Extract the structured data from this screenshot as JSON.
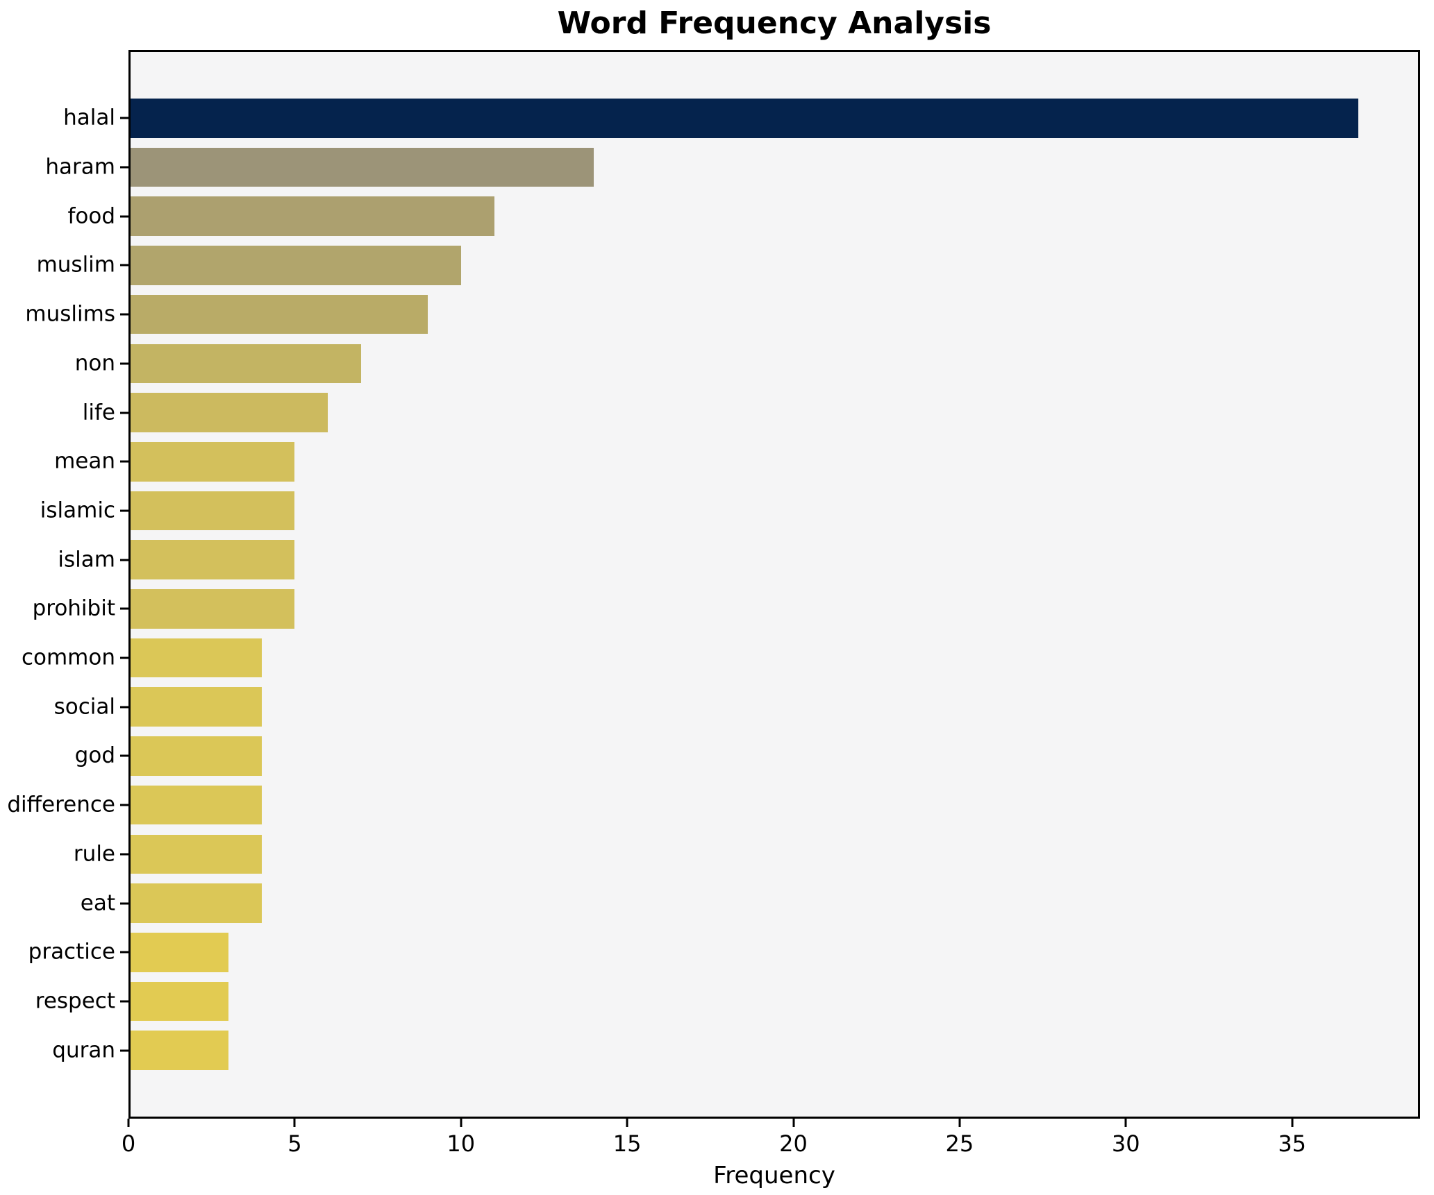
{
  "chart_data": {
    "type": "bar",
    "orientation": "horizontal",
    "title": "Word Frequency Analysis",
    "xlabel": "Frequency",
    "ylabel": "",
    "categories": [
      "halal",
      "haram",
      "food",
      "muslim",
      "muslims",
      "non",
      "life",
      "mean",
      "islamic",
      "islam",
      "prohibit",
      "common",
      "social",
      "god",
      "difference",
      "rule",
      "eat",
      "practice",
      "respect",
      "quran"
    ],
    "values": [
      37,
      14,
      11,
      10,
      9,
      7,
      6,
      5,
      5,
      5,
      5,
      4,
      4,
      4,
      4,
      4,
      4,
      3,
      3,
      3
    ],
    "bar_colors": [
      "#05234d",
      "#9c9478",
      "#aca06f",
      "#b1a56c",
      "#b9ab67",
      "#c3b463",
      "#ccba5f",
      "#d3c05c",
      "#d3c05c",
      "#d3c05c",
      "#d3c05c",
      "#dbc757",
      "#dbc757",
      "#dbc757",
      "#dbc757",
      "#dbc757",
      "#dbc757",
      "#e2cb52",
      "#e2cb52",
      "#e2cb52"
    ],
    "xlim": [
      0,
      38.85
    ],
    "xticks": [
      0,
      5,
      10,
      15,
      20,
      25,
      30,
      35
    ],
    "grid": false,
    "legend": "none",
    "plot_bg": "#f5f5f6",
    "figure_bg": "#ffffff",
    "spine_color": "#000000",
    "text_color": "#000000"
  }
}
